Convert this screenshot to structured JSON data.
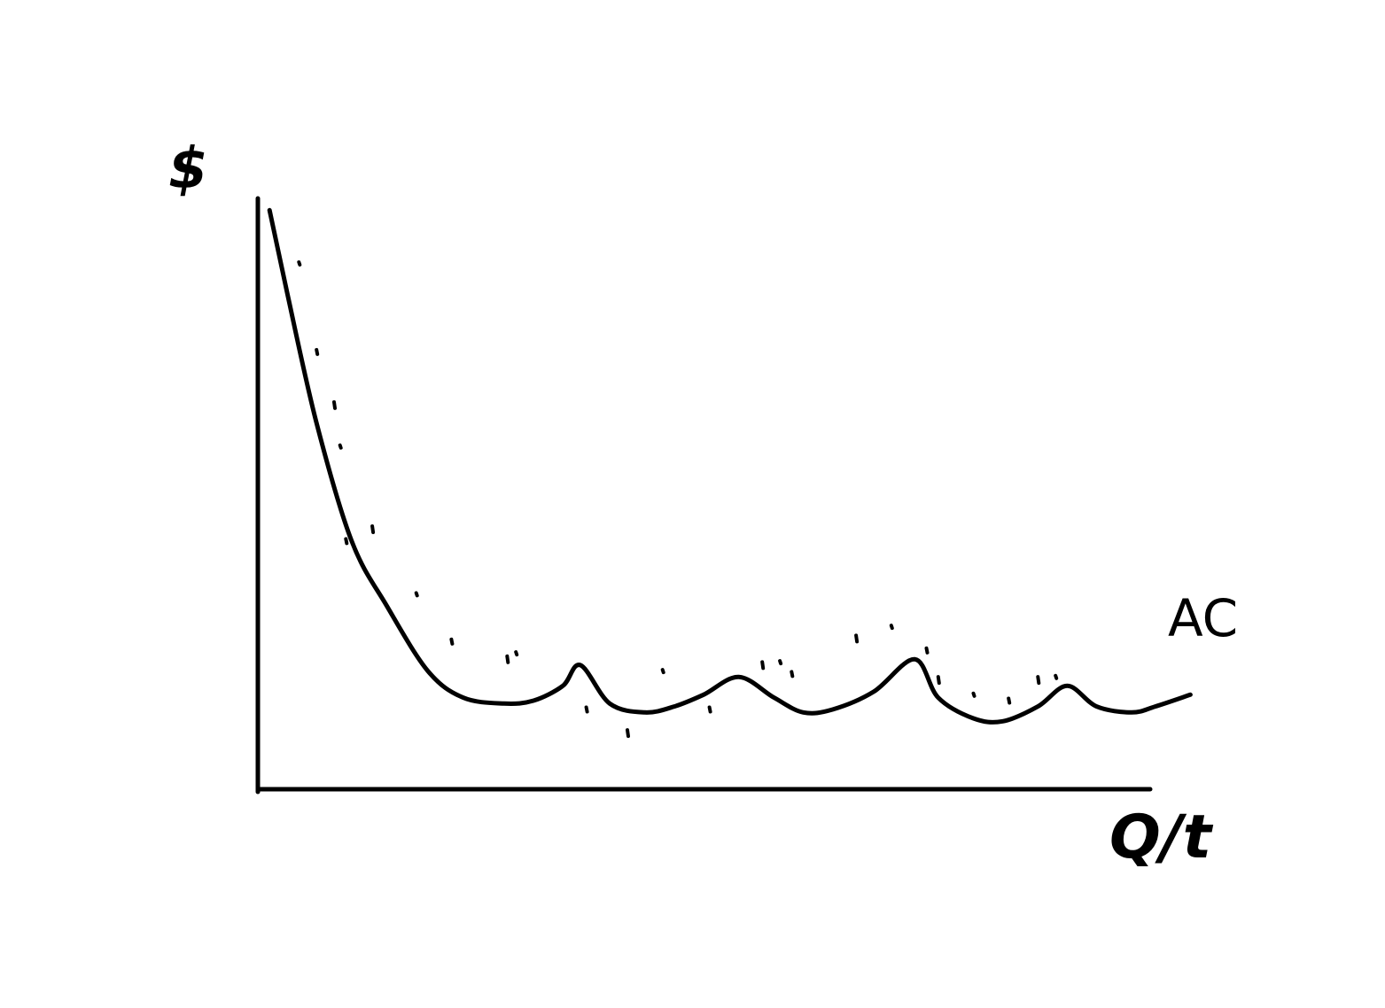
{
  "chart_data": {
    "type": "line",
    "title": "",
    "ylabel": "$",
    "xlabel": "Q/t",
    "series": [
      {
        "name": "AC",
        "x": [
          0.2,
          0.5,
          1.0,
          1.6,
          2.2,
          2.9,
          3.5,
          4.2,
          4.7,
          5.2,
          5.5,
          6.0,
          6.6,
          7.1,
          7.6,
          8.2,
          8.8,
          9.3,
          9.8,
          10.5,
          11.2,
          11.6,
          12.2,
          12.7,
          13.3,
          13.8,
          14.3,
          14.9,
          15.3,
          15.9
        ],
        "y": [
          9.8,
          8.4,
          6.2,
          4.2,
          3.1,
          2.0,
          1.55,
          1.45,
          1.5,
          1.75,
          2.1,
          1.45,
          1.3,
          1.4,
          1.6,
          1.9,
          1.55,
          1.3,
          1.35,
          1.65,
          2.2,
          1.55,
          1.2,
          1.15,
          1.4,
          1.75,
          1.4,
          1.3,
          1.4,
          1.6
        ]
      },
      {
        "name": "",
        "style": "scattered dots",
        "x": [
          0.7,
          1.0,
          1.3,
          1.4,
          1.5,
          1.95,
          2.7,
          3.3,
          4.25,
          4.4,
          5.6,
          6.3,
          6.9,
          7.7,
          8.6,
          8.9,
          9.1,
          10.2,
          10.8,
          11.4,
          11.6,
          12.2,
          12.8,
          13.3,
          13.6
        ],
        "y": [
          8.9,
          7.4,
          6.5,
          5.8,
          4.2,
          4.4,
          3.3,
          2.5,
          2.2,
          2.3,
          1.35,
          0.95,
          2.0,
          1.35,
          2.1,
          2.15,
          1.95,
          2.55,
          2.75,
          2.35,
          1.85,
          1.6,
          1.5,
          1.85,
          1.9
        ]
      }
    ],
    "xlim": [
      0,
      16
    ],
    "ylim": [
      0,
      10
    ],
    "grid": false,
    "axes": {
      "y_label": "$",
      "x_label": "Q/t"
    }
  }
}
